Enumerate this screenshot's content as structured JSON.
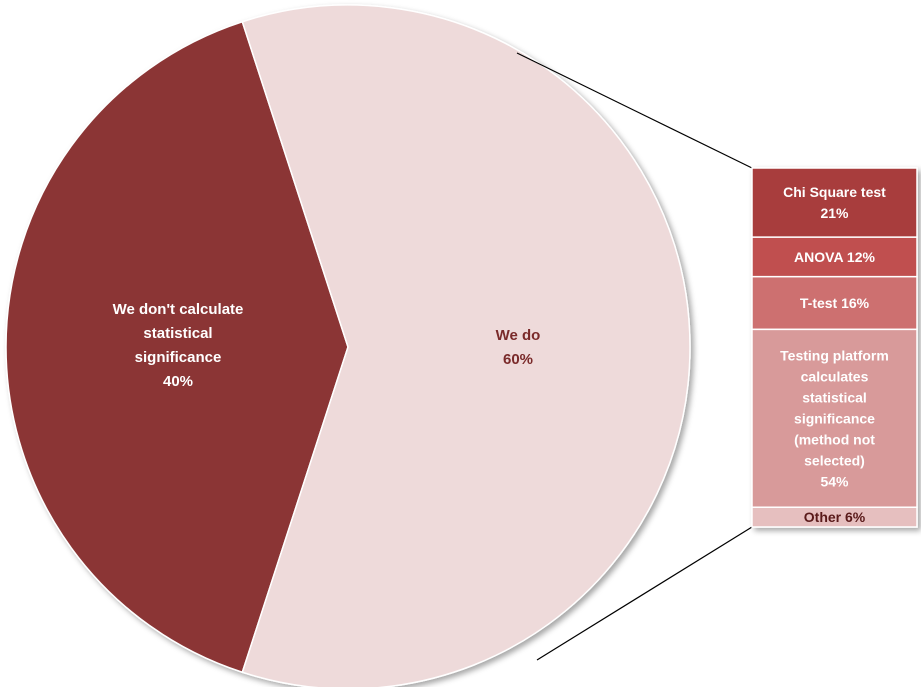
{
  "chart_data": {
    "type": "pie",
    "pie": {
      "slices": [
        {
          "label": "We don't calculate statistical significance",
          "value": 40,
          "value_label": "40%",
          "color": "#8b3535"
        },
        {
          "label": "We do",
          "value": 60,
          "value_label": "60%",
          "color": "#eedada"
        }
      ]
    },
    "breakdown": {
      "of": "We do",
      "type": "stacked-bar",
      "items": [
        {
          "label": "Chi Square test",
          "value": 21,
          "value_label": "21%",
          "color": "#a83e3e"
        },
        {
          "label": "ANOVA",
          "value": 12,
          "value_label": "12%",
          "color": "#c05050"
        },
        {
          "label": "T-test",
          "value": 16,
          "value_label": "16%",
          "color": "#cd7070"
        },
        {
          "label": "Testing platform calculates statistical significance (method not selected)",
          "value": 54,
          "value_label": "54%",
          "color": "#d89a9a"
        },
        {
          "label": "Other",
          "value": 6,
          "value_label": "6%",
          "color": "#e6bfbf"
        }
      ]
    },
    "title": "",
    "legend": "none"
  }
}
